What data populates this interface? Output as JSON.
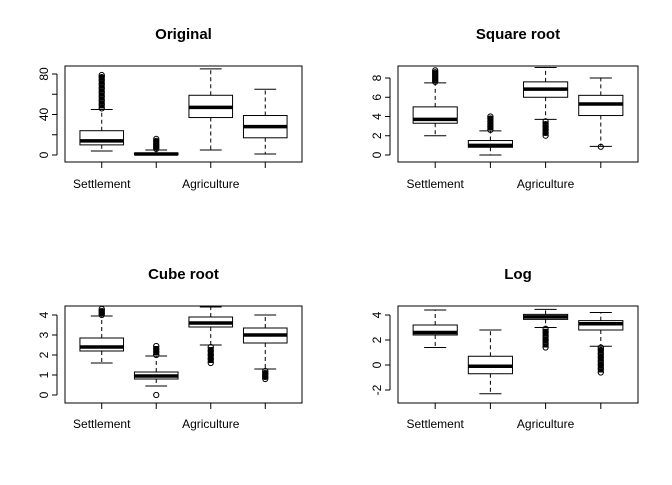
{
  "chart_data": [
    {
      "type": "boxplot",
      "title": "Original",
      "yticks": [
        0,
        20,
        40,
        60,
        80
      ],
      "ytick_labels": [
        "0",
        "",
        "40",
        "",
        "80"
      ],
      "ylim": [
        -6.9,
        87.9
      ],
      "category_labels": [
        "Settlement",
        "",
        "Agriculture",
        ""
      ],
      "boxes": [
        {
          "whisker_low": 4,
          "q1": 10,
          "median": 14,
          "q3": 24,
          "whisker_high": 45,
          "outliers": [
            46,
            50,
            54,
            58,
            62,
            66,
            70,
            74,
            77,
            79
          ]
        },
        {
          "whisker_low": 0,
          "q1": 0.4,
          "median": 1,
          "q3": 2,
          "whisker_high": 5,
          "outliers": [
            6,
            8,
            10,
            12,
            14,
            16
          ]
        },
        {
          "whisker_low": 5,
          "q1": 37,
          "median": 47,
          "q3": 59,
          "whisker_high": 85,
          "outliers": []
        },
        {
          "whisker_low": 1,
          "q1": 17,
          "median": 28,
          "q3": 39,
          "whisker_high": 65,
          "outliers": []
        }
      ]
    },
    {
      "type": "boxplot",
      "title": "Square root",
      "yticks": [
        0,
        2,
        4,
        6,
        8
      ],
      "ytick_labels": [
        "0",
        "2",
        "4",
        "6",
        "8"
      ],
      "ylim": [
        -0.73,
        9.25
      ],
      "category_labels": [
        "Settlement",
        "",
        "Agriculture",
        ""
      ],
      "boxes": [
        {
          "whisker_low": 2,
          "q1": 3.3,
          "median": 3.7,
          "q3": 5.0,
          "whisker_high": 7.5,
          "outliers": [
            7.6,
            7.8,
            8.0,
            8.2,
            8.4,
            8.6,
            8.8
          ]
        },
        {
          "whisker_low": 0,
          "q1": 0.8,
          "median": 1.0,
          "q3": 1.5,
          "whisker_high": 2.5,
          "outliers": [
            2.6,
            2.9,
            3.2,
            3.5,
            3.8,
            4.0
          ]
        },
        {
          "whisker_low": 3.7,
          "q1": 6.0,
          "median": 6.85,
          "q3": 7.6,
          "whisker_high": 9.1,
          "outliers": [
            2.0,
            2.3,
            2.6,
            2.9,
            3.2,
            3.5
          ]
        },
        {
          "whisker_low": 0.9,
          "q1": 4.1,
          "median": 5.3,
          "q3": 6.2,
          "whisker_high": 8.0,
          "outliers": [
            0.85
          ]
        }
      ]
    },
    {
      "type": "boxplot",
      "title": "Cube root",
      "yticks": [
        0,
        1,
        2,
        3,
        4
      ],
      "ytick_labels": [
        "0",
        "1",
        "2",
        "3",
        "4"
      ],
      "ylim": [
        -0.4,
        4.45
      ],
      "category_labels": [
        "Settlement",
        "",
        "Agriculture",
        ""
      ],
      "boxes": [
        {
          "whisker_low": 1.6,
          "q1": 2.2,
          "median": 2.4,
          "q3": 2.85,
          "whisker_high": 3.95,
          "outliers": [
            4.0,
            4.1,
            4.2,
            4.3
          ]
        },
        {
          "whisker_low": 0.45,
          "q1": 0.8,
          "median": 0.95,
          "q3": 1.15,
          "whisker_high": 1.95,
          "outliers": [
            0,
            2.0,
            2.15,
            2.3,
            2.45
          ]
        },
        {
          "whisker_low": 2.5,
          "q1": 3.4,
          "median": 3.6,
          "q3": 3.9,
          "whisker_high": 4.4,
          "outliers": [
            1.6,
            1.8,
            2.0,
            2.2,
            2.4
          ]
        },
        {
          "whisker_low": 1.3,
          "q1": 2.6,
          "median": 3.0,
          "q3": 3.35,
          "whisker_high": 4.0,
          "outliers": [
            0.8,
            0.9,
            1.0,
            1.1,
            1.2
          ]
        }
      ]
    },
    {
      "type": "boxplot",
      "title": "Log",
      "yticks": [
        -2,
        0,
        2,
        4
      ],
      "ytick_labels": [
        "-2",
        "0",
        "2",
        "4"
      ],
      "ylim": [
        -3.04,
        4.72
      ],
      "category_labels": [
        "Settlement",
        "",
        "Agriculture",
        ""
      ],
      "boxes": [
        {
          "whisker_low": 1.4,
          "q1": 2.4,
          "median": 2.6,
          "q3": 3.2,
          "whisker_high": 4.4,
          "outliers": []
        },
        {
          "whisker_low": -2.3,
          "q1": -0.7,
          "median": -0.1,
          "q3": 0.7,
          "whisker_high": 2.8,
          "outliers": []
        },
        {
          "whisker_low": 3.0,
          "q1": 3.65,
          "median": 3.85,
          "q3": 4.05,
          "whisker_high": 4.45,
          "outliers": [
            1.4,
            1.7,
            2.0,
            2.3,
            2.6,
            2.9
          ]
        },
        {
          "whisker_low": 1.5,
          "q1": 2.8,
          "median": 3.3,
          "q3": 3.55,
          "whisker_high": 4.2,
          "outliers": [
            -0.6,
            -0.3,
            0,
            0.3,
            0.6,
            0.9,
            1.2,
            1.4
          ]
        }
      ]
    }
  ]
}
